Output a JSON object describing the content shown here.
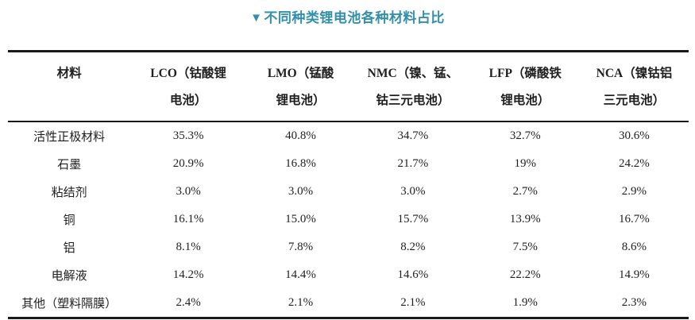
{
  "title": {
    "marker": "▼",
    "text": "不同种类锂电池各种材料占比"
  },
  "accent_color": "#3390ad",
  "table": {
    "columns": [
      {
        "id": "material",
        "line1": "材料",
        "line2": ""
      },
      {
        "id": "lco",
        "line1": "LCO（钴酸锂",
        "line2": "电池）"
      },
      {
        "id": "lmo",
        "line1": "LMO（锰酸",
        "line2": "锂电池）"
      },
      {
        "id": "nmc",
        "line1": "NMC（镍、锰、",
        "line2": "钴三元电池）"
      },
      {
        "id": "lfp",
        "line1": "LFP（磷酸铁",
        "line2": "锂电池）"
      },
      {
        "id": "nca",
        "line1": "NCA（镍钴铝",
        "line2": "三元电池）"
      }
    ],
    "rows": [
      {
        "material": "活性正极材料",
        "values": [
          "35.3%",
          "40.8%",
          "34.7%",
          "32.7%",
          "30.6%"
        ]
      },
      {
        "material": "石墨",
        "values": [
          "20.9%",
          "16.8%",
          "21.7%",
          "19%",
          "24.2%"
        ]
      },
      {
        "material": "粘结剂",
        "values": [
          "3.0%",
          "3.0%",
          "3.0%",
          "2.7%",
          "2.9%"
        ]
      },
      {
        "material": "铜",
        "values": [
          "16.1%",
          "15.0%",
          "15.7%",
          "13.9%",
          "16.7%"
        ]
      },
      {
        "material": "铝",
        "values": [
          "8.1%",
          "7.8%",
          "8.2%",
          "7.5%",
          "8.6%"
        ]
      },
      {
        "material": "电解液",
        "values": [
          "14.2%",
          "14.4%",
          "14.6%",
          "22.2%",
          "14.9%"
        ]
      },
      {
        "material": "其他（塑料隔膜）",
        "values": [
          "2.4%",
          "2.1%",
          "2.1%",
          "1.9%",
          "2.3%"
        ]
      }
    ]
  },
  "chart_data": {
    "type": "table",
    "title": "不同种类锂电池各种材料占比",
    "row_header": "材料",
    "categories": [
      "活性正极材料",
      "石墨",
      "粘结剂",
      "铜",
      "铝",
      "电解液",
      "其他（塑料隔膜）"
    ],
    "series": [
      {
        "name": "LCO（钴酸锂电池）",
        "values": [
          35.3,
          20.9,
          3.0,
          16.1,
          8.1,
          14.2,
          2.4
        ]
      },
      {
        "name": "LMO（锰酸锂电池）",
        "values": [
          40.8,
          16.8,
          3.0,
          15.0,
          7.8,
          14.4,
          2.1
        ]
      },
      {
        "name": "NMC（镍、锰、钴三元电池）",
        "values": [
          34.7,
          21.7,
          3.0,
          15.7,
          8.2,
          14.6,
          2.1
        ]
      },
      {
        "name": "LFP（磷酸铁锂电池）",
        "values": [
          32.7,
          19,
          2.7,
          13.9,
          7.5,
          22.2,
          1.9
        ]
      },
      {
        "name": "NCA（镍钴铝三元电池）",
        "values": [
          30.6,
          24.2,
          2.9,
          16.7,
          8.6,
          14.9,
          2.3
        ]
      }
    ],
    "unit": "%",
    "layout": "three-line table, no vertical rules, caption centered above in teal"
  }
}
